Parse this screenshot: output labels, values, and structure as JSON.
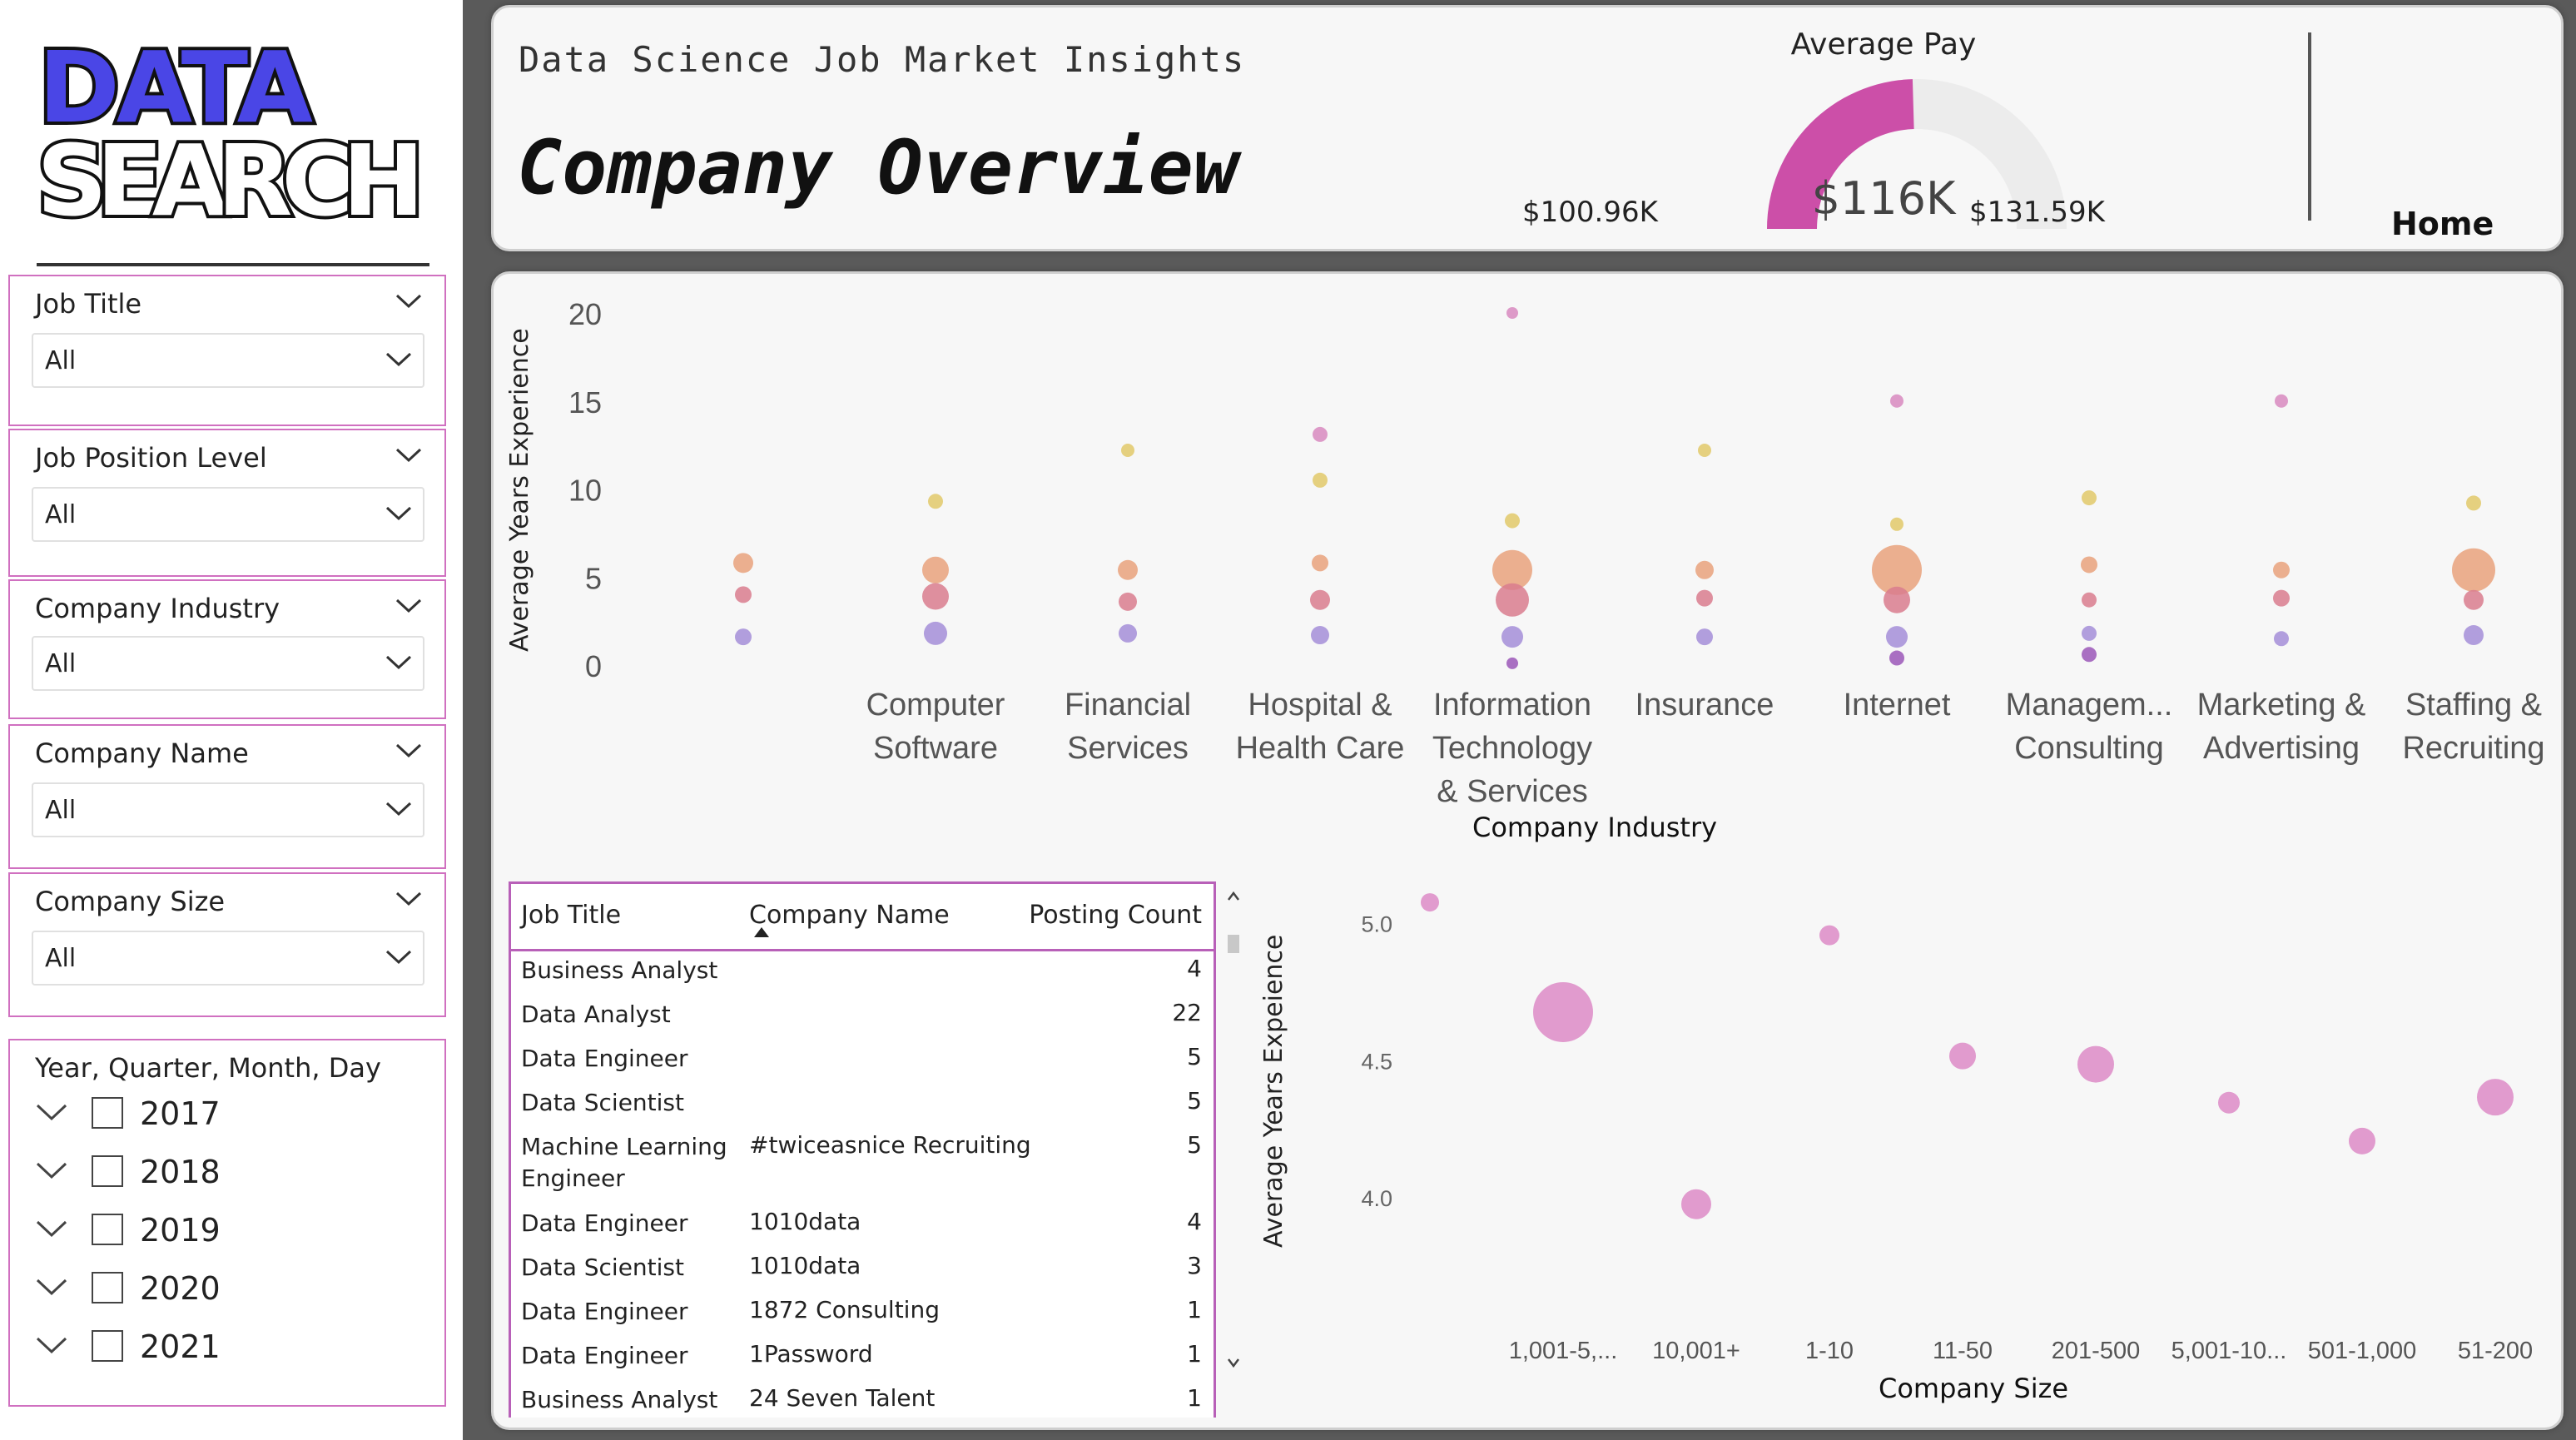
{
  "logo": {
    "line1": "DATA",
    "line2": "SEARCH"
  },
  "slicers": [
    {
      "title": "Job Title",
      "value": "All"
    },
    {
      "title": "Job Position Level",
      "value": "All"
    },
    {
      "title": "Company Industry",
      "value": "All"
    },
    {
      "title": "Company Name",
      "value": "All"
    },
    {
      "title": "Company Size",
      "value": "All"
    }
  ],
  "date_slicer": {
    "title": "Year, Quarter, Month, Day",
    "years": [
      "2017",
      "2018",
      "2019",
      "2020",
      "2021"
    ]
  },
  "header": {
    "subtitle": "Data Science Job Market Insights",
    "title": "Company Overview",
    "home": "Home",
    "gauge": {
      "title": "Average Pay",
      "value_label": "$116K",
      "min_label": "$100.96K",
      "max_label": "$131.59K",
      "min": 100.96,
      "max": 131.59,
      "value": 116
    }
  },
  "colors": {
    "pink": "#cc4fa8",
    "gauge_bg": "#ececec"
  },
  "chart_data": [
    {
      "type": "scatter",
      "ylabel": "Average Years Experience",
      "xlabel": "Company Industry",
      "ylim": [
        0,
        20
      ],
      "yticks": [
        0,
        5,
        10,
        15,
        20
      ],
      "categories": [
        "",
        "Computer Software",
        "Financial Services",
        "Hospital & Health Care",
        "Information Technology & Services",
        "Insurance",
        "Internet",
        "Managem... Consulting",
        "Marketing & Advertising",
        "Staffing & Recruiting"
      ],
      "points": [
        {
          "cat": 0,
          "y": 5.8,
          "size": 12,
          "color": "#e9a27c"
        },
        {
          "cat": 0,
          "y": 4.0,
          "size": 10,
          "color": "#d97c8e"
        },
        {
          "cat": 0,
          "y": 1.6,
          "size": 10,
          "color": "#a58ed8"
        },
        {
          "cat": 1,
          "y": 9.3,
          "size": 9,
          "color": "#e2c96a"
        },
        {
          "cat": 1,
          "y": 5.4,
          "size": 16,
          "color": "#e9a27c"
        },
        {
          "cat": 1,
          "y": 3.9,
          "size": 16,
          "color": "#d97c8e"
        },
        {
          "cat": 1,
          "y": 1.8,
          "size": 14,
          "color": "#a58ed8"
        },
        {
          "cat": 2,
          "y": 12.2,
          "size": 8,
          "color": "#e2c96a"
        },
        {
          "cat": 2,
          "y": 5.4,
          "size": 12,
          "color": "#e9a27c"
        },
        {
          "cat": 2,
          "y": 3.6,
          "size": 11,
          "color": "#d97c8e"
        },
        {
          "cat": 2,
          "y": 1.8,
          "size": 11,
          "color": "#a58ed8"
        },
        {
          "cat": 3,
          "y": 13.1,
          "size": 9,
          "color": "#d889c0"
        },
        {
          "cat": 3,
          "y": 10.5,
          "size": 9,
          "color": "#e2c96a"
        },
        {
          "cat": 3,
          "y": 5.8,
          "size": 10,
          "color": "#e9a27c"
        },
        {
          "cat": 3,
          "y": 3.7,
          "size": 12,
          "color": "#d97c8e"
        },
        {
          "cat": 3,
          "y": 1.7,
          "size": 11,
          "color": "#a58ed8"
        },
        {
          "cat": 4,
          "y": 20.0,
          "size": 7,
          "color": "#d889c0"
        },
        {
          "cat": 4,
          "y": 8.2,
          "size": 9,
          "color": "#e2c96a"
        },
        {
          "cat": 4,
          "y": 5.4,
          "size": 24,
          "color": "#e9a27c"
        },
        {
          "cat": 4,
          "y": 3.7,
          "size": 20,
          "color": "#d97c8e"
        },
        {
          "cat": 4,
          "y": 1.6,
          "size": 13,
          "color": "#a58ed8"
        },
        {
          "cat": 4,
          "y": 0.1,
          "size": 7,
          "color": "#9b57b8"
        },
        {
          "cat": 5,
          "y": 12.2,
          "size": 8,
          "color": "#e2c96a"
        },
        {
          "cat": 5,
          "y": 5.4,
          "size": 11,
          "color": "#e9a27c"
        },
        {
          "cat": 5,
          "y": 3.8,
          "size": 10,
          "color": "#d97c8e"
        },
        {
          "cat": 5,
          "y": 1.6,
          "size": 10,
          "color": "#a58ed8"
        },
        {
          "cat": 6,
          "y": 15.0,
          "size": 8,
          "color": "#d889c0"
        },
        {
          "cat": 6,
          "y": 8.0,
          "size": 8,
          "color": "#e2c96a"
        },
        {
          "cat": 6,
          "y": 5.4,
          "size": 30,
          "color": "#e9a27c"
        },
        {
          "cat": 6,
          "y": 3.7,
          "size": 16,
          "color": "#d97c8e"
        },
        {
          "cat": 6,
          "y": 1.6,
          "size": 13,
          "color": "#a58ed8"
        },
        {
          "cat": 6,
          "y": 0.4,
          "size": 9,
          "color": "#9b57b8"
        },
        {
          "cat": 7,
          "y": 9.5,
          "size": 9,
          "color": "#e2c96a"
        },
        {
          "cat": 7,
          "y": 5.7,
          "size": 10,
          "color": "#e9a27c"
        },
        {
          "cat": 7,
          "y": 3.7,
          "size": 9,
          "color": "#d97c8e"
        },
        {
          "cat": 7,
          "y": 1.8,
          "size": 9,
          "color": "#a58ed8"
        },
        {
          "cat": 7,
          "y": 0.6,
          "size": 9,
          "color": "#9b57b8"
        },
        {
          "cat": 8,
          "y": 15.0,
          "size": 8,
          "color": "#d889c0"
        },
        {
          "cat": 8,
          "y": 5.4,
          "size": 10,
          "color": "#e9a27c"
        },
        {
          "cat": 8,
          "y": 3.8,
          "size": 10,
          "color": "#d97c8e"
        },
        {
          "cat": 8,
          "y": 1.5,
          "size": 9,
          "color": "#a58ed8"
        },
        {
          "cat": 9,
          "y": 9.2,
          "size": 9,
          "color": "#e2c96a"
        },
        {
          "cat": 9,
          "y": 5.4,
          "size": 26,
          "color": "#e9a27c"
        },
        {
          "cat": 9,
          "y": 3.7,
          "size": 12,
          "color": "#d97c8e"
        },
        {
          "cat": 9,
          "y": 1.7,
          "size": 12,
          "color": "#a58ed8"
        }
      ]
    },
    {
      "type": "scatter",
      "ylabel": "Average Years Expeience",
      "xlabel": "Company Size",
      "ylim": [
        3.7,
        5.15
      ],
      "yticks": [
        "4.0",
        "4.5",
        "5.0"
      ],
      "categories": [
        "1,001-5,... employe...",
        "10,001+ employe...",
        "1-10 employe...",
        "11-50 employe...",
        "201-500 employe...",
        "5,001-10... employe...",
        "501-1,000 employe...",
        "51-200 employe..."
      ],
      "points": [
        {
          "x": -1,
          "y": 5.08,
          "size": 11
        },
        {
          "x": 0,
          "y": 4.68,
          "size": 36
        },
        {
          "x": 1,
          "y": 3.98,
          "size": 18
        },
        {
          "x": 2,
          "y": 4.96,
          "size": 12
        },
        {
          "x": 3,
          "y": 4.52,
          "size": 16
        },
        {
          "x": 4,
          "y": 4.49,
          "size": 22
        },
        {
          "x": 5,
          "y": 4.35,
          "size": 13
        },
        {
          "x": 6,
          "y": 4.21,
          "size": 16
        },
        {
          "x": 7,
          "y": 4.37,
          "size": 22
        }
      ]
    }
  ],
  "table": {
    "headers": [
      "Job Title",
      "Company Name",
      "Posting Count"
    ],
    "rows": [
      [
        "Business Analyst",
        "",
        "4"
      ],
      [
        "Data Analyst",
        "",
        "22"
      ],
      [
        "Data Engineer",
        "",
        "5"
      ],
      [
        "Data Scientist",
        "",
        "5"
      ],
      [
        "Machine Learning Engineer",
        "#twiceasnice Recruiting",
        "5"
      ],
      [
        "Data Engineer",
        "1010data",
        "4"
      ],
      [
        "Data Scientist",
        "1010data",
        "3"
      ],
      [
        "Data Engineer",
        "1872 Consulting",
        "1"
      ],
      [
        "Data Engineer",
        "1Password",
        "1"
      ],
      [
        "Business Analyst",
        "24 Seven Talent",
        "1"
      ]
    ]
  }
}
